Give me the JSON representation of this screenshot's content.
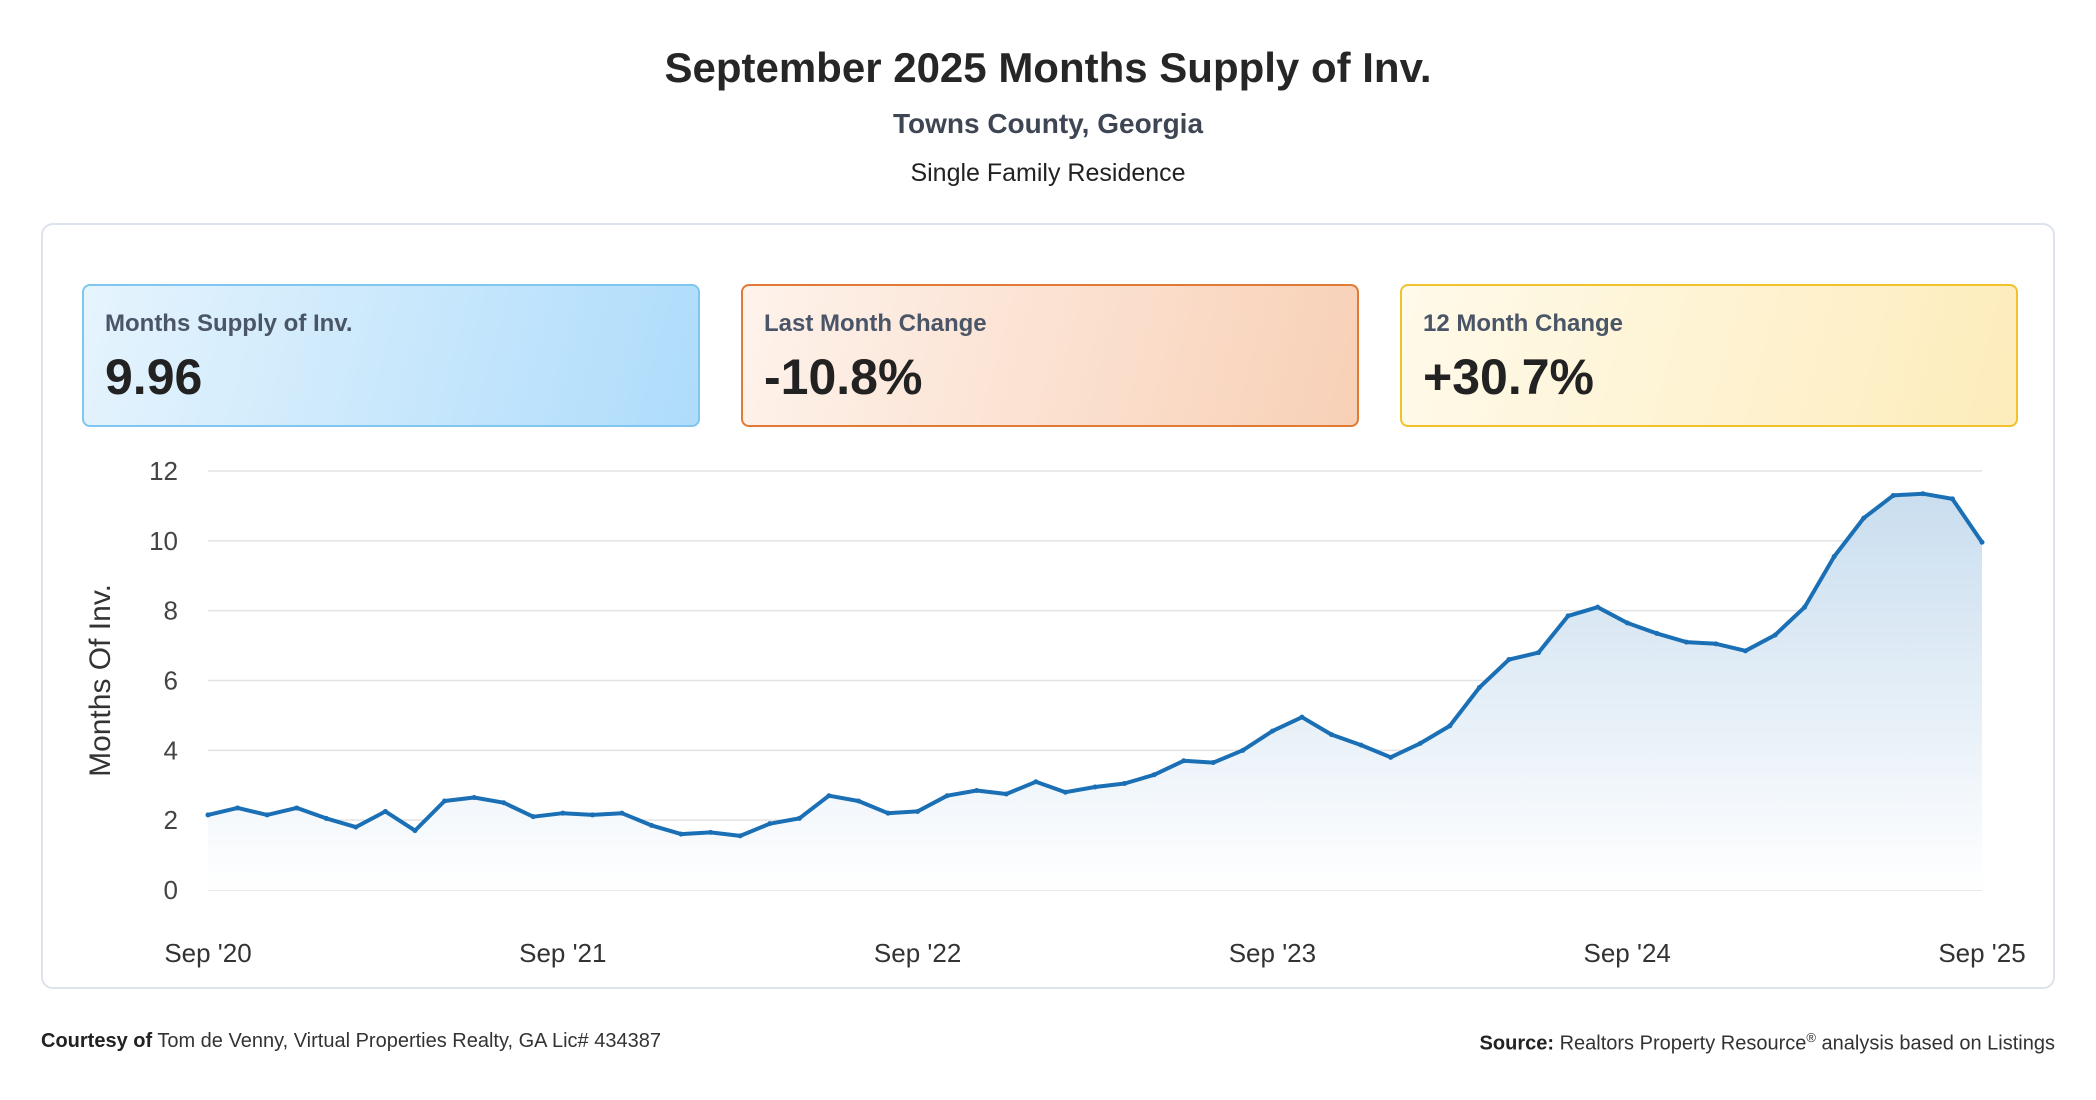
{
  "header": {
    "title": "September 2025 Months Supply of Inv.",
    "subtitle": "Towns County, Georgia",
    "category": "Single Family Residence"
  },
  "cards": [
    {
      "label": "Months Supply of Inv.",
      "value": "9.96"
    },
    {
      "label": "Last Month Change",
      "value": "-10.8%"
    },
    {
      "label": "12 Month Change",
      "value": "+30.7%"
    }
  ],
  "footer": {
    "courtesy_label": "Courtesy of",
    "courtesy_text": "Tom de Venny, Virtual Properties Realty, GA Lic# 434387",
    "source_label": "Source:",
    "source_text_1": "Realtors Property Resource",
    "source_sup": "®",
    "source_text_2": " analysis based on Listings"
  },
  "colors": {
    "line": "#1a6fb5",
    "area_top": "#c7dcee",
    "grid": "#e2e2e2"
  },
  "chart_data": {
    "type": "area",
    "title": "",
    "xlabel": "",
    "ylabel": "Months Of Inv.",
    "ylim": [
      0,
      12
    ],
    "yticks": [
      "0",
      "2",
      "4",
      "6",
      "8",
      "10",
      "12"
    ],
    "xticks": [
      "Sep '20",
      "Sep '21",
      "Sep '22",
      "Sep '23",
      "Sep '24",
      "Sep '25"
    ],
    "grid": true,
    "legend": "none",
    "series": [
      {
        "x": [
          "Sep '20",
          "Oct '20",
          "Nov '20",
          "Dec '20",
          "Jan '21",
          "Feb '21",
          "Mar '21",
          "Apr '21",
          "May '21",
          "Jun '21",
          "Jul '21",
          "Aug '21",
          "Sep '21",
          "Oct '21",
          "Nov '21",
          "Dec '21",
          "Jan '22",
          "Feb '22",
          "Mar '22",
          "Apr '22",
          "May '22",
          "Jun '22",
          "Jul '22",
          "Aug '22",
          "Sep '22",
          "Oct '22",
          "Nov '22",
          "Dec '22",
          "Jan '23",
          "Feb '23",
          "Mar '23",
          "Apr '23",
          "May '23",
          "Jun '23",
          "Jul '23",
          "Aug '23",
          "Sep '23",
          "Oct '23",
          "Nov '23",
          "Dec '23",
          "Jan '24",
          "Feb '24",
          "Mar '24",
          "Apr '24",
          "May '24",
          "Jun '24",
          "Jul '24",
          "Aug '24",
          "Sep '24",
          "Oct '24",
          "Nov '24",
          "Dec '24",
          "Jan '25",
          "Feb '25",
          "Mar '25",
          "Apr '25",
          "May '25",
          "Jun '25",
          "Jul '25",
          "Aug '25",
          "Sep '25"
        ],
        "values": [
          2.15,
          2.35,
          2.15,
          2.35,
          2.05,
          1.8,
          2.25,
          1.7,
          2.55,
          2.65,
          2.5,
          2.1,
          2.2,
          2.15,
          2.2,
          1.85,
          1.6,
          1.65,
          1.55,
          1.9,
          2.05,
          2.7,
          2.55,
          2.2,
          2.25,
          2.7,
          2.85,
          2.75,
          3.1,
          2.8,
          2.95,
          3.05,
          3.3,
          3.7,
          3.65,
          4.0,
          4.55,
          4.95,
          4.45,
          4.15,
          3.8,
          4.2,
          4.7,
          5.8,
          6.6,
          6.8,
          7.85,
          8.1,
          7.65,
          7.35,
          7.1,
          7.05,
          6.85,
          7.3,
          8.1,
          9.55,
          10.65,
          11.3,
          11.35,
          11.2,
          9.96
        ]
      }
    ]
  }
}
